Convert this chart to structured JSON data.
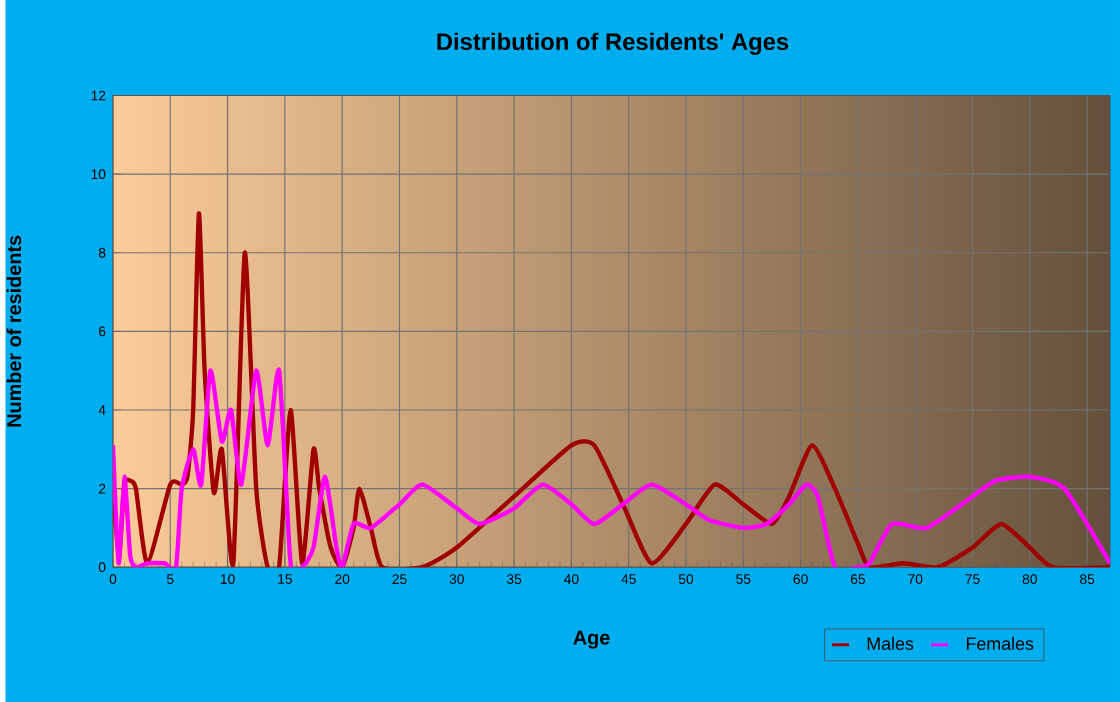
{
  "chart_data": {
    "type": "line",
    "title": "Distribution of Residents' Ages",
    "xlabel": "Age",
    "ylabel": "Number of residents",
    "xlim": [
      0,
      87
    ],
    "ylim": [
      0,
      12
    ],
    "xticks": [
      0,
      5,
      10,
      15,
      20,
      25,
      30,
      35,
      40,
      45,
      50,
      55,
      60,
      65,
      70,
      75,
      80,
      85
    ],
    "yticks": [
      0,
      2,
      4,
      6,
      8,
      10,
      12
    ],
    "grid": true,
    "legend": "bottom right",
    "marker": "none",
    "line_style": "solid",
    "series": [
      {
        "name": "Males",
        "color": "#a00000",
        "x": [
          0,
          0.5,
          1,
          1.5,
          2,
          3,
          5,
          6,
          6.5,
          7,
          7.5,
          8,
          8.8,
          9.5,
          10.5,
          11.5,
          12.5,
          13.5,
          14.5,
          15.5,
          16.5,
          17.5,
          18,
          19,
          20,
          21,
          21.5,
          22.5,
          23.5,
          27,
          30,
          35,
          40,
          42,
          44.5,
          47,
          50,
          52.5,
          55,
          57.5,
          59,
          61,
          63,
          65,
          66,
          69,
          72,
          75,
          77.5,
          80,
          82,
          87
        ],
        "values": [
          2.1,
          0.2,
          2.1,
          2.2,
          2,
          0.1,
          2.1,
          2.1,
          2.3,
          4,
          9,
          5,
          1.9,
          3,
          0.1,
          8,
          2,
          0,
          0,
          4,
          0.1,
          3,
          2,
          0.5,
          0,
          1,
          2,
          1,
          0,
          0,
          0.5,
          1.8,
          3.1,
          3.1,
          1.6,
          0.1,
          1.1,
          2.1,
          1.6,
          1.1,
          1.8,
          3.1,
          2,
          0.6,
          0,
          0.1,
          0,
          0.5,
          1.1,
          0.5,
          0,
          0
        ]
      },
      {
        "name": "Females",
        "color": "#ff00ff",
        "x": [
          0,
          0.5,
          1,
          1.5,
          2,
          3,
          4.5,
          5.5,
          6,
          7,
          7.7,
          8.5,
          9.5,
          10.3,
          11.2,
          12.5,
          13.5,
          14.5,
          15.5,
          16.5,
          17.5,
          18.5,
          19.5,
          20,
          21,
          22.5,
          25,
          27,
          30,
          32,
          35,
          37.5,
          40,
          42,
          44.5,
          47,
          50,
          52,
          55,
          57,
          59,
          60.5,
          61.5,
          63,
          65,
          66,
          68,
          71,
          75,
          77,
          80,
          83,
          87
        ],
        "values": [
          3.1,
          0.1,
          2.3,
          0.3,
          0,
          0.1,
          0.1,
          0,
          2,
          3,
          2.1,
          5,
          3.2,
          4,
          2.1,
          5,
          3.1,
          5,
          0.1,
          0,
          0.5,
          2.3,
          0.5,
          0,
          1.1,
          1,
          1.6,
          2.1,
          1.5,
          1.1,
          1.5,
          2.1,
          1.6,
          1.1,
          1.6,
          2.1,
          1.6,
          1.2,
          1,
          1.1,
          1.6,
          2.1,
          1.8,
          0,
          0,
          0.1,
          1.1,
          1,
          1.8,
          2.2,
          2.3,
          2,
          0.1
        ]
      }
    ]
  }
}
